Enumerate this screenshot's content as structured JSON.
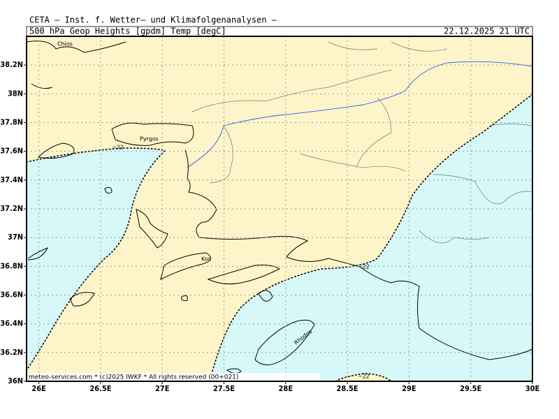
{
  "header": {
    "title": "CETA – Inst. f. Wetter– und Klimafolgenanalysen –",
    "product": "500_hPa_Geop_Heights_[gpdm]_Temp_[degC]",
    "time": "22.12.2025 21 UTC"
  },
  "map": {
    "lon_range": [
      25.9,
      30
    ],
    "lat_range": [
      36,
      38.4
    ],
    "lon_ticks": [
      {
        "value": 26,
        "label": "26E"
      },
      {
        "value": 26.5,
        "label": "26.5E"
      },
      {
        "value": 27,
        "label": "27E"
      },
      {
        "value": 27.5,
        "label": "27.5E"
      },
      {
        "value": 28,
        "label": "28E"
      },
      {
        "value": 28.5,
        "label": "28.5E"
      },
      {
        "value": 29,
        "label": "29E"
      },
      {
        "value": 29.5,
        "label": "29.5E"
      },
      {
        "value": 30,
        "label": "30E"
      }
    ],
    "lat_ticks": [
      {
        "value": 36,
        "label": "36N"
      },
      {
        "value": 36.2,
        "label": "36.2N"
      },
      {
        "value": 36.4,
        "label": "36.4N"
      },
      {
        "value": 36.6,
        "label": "36.6N"
      },
      {
        "value": 36.8,
        "label": "36.8N"
      },
      {
        "value": 37,
        "label": "37N"
      },
      {
        "value": 37.2,
        "label": "37.2N"
      },
      {
        "value": 37.4,
        "label": "37.4N"
      },
      {
        "value": 37.6,
        "label": "37.6N"
      },
      {
        "value": 37.8,
        "label": "37.8N"
      },
      {
        "value": 38,
        "label": "38N"
      },
      {
        "value": 38.2,
        "label": "38.2N"
      }
    ],
    "places": [
      "Chios",
      "Pyrgos",
      "Kos",
      "Rhodos"
    ],
    "contour_labels": [
      "−22",
      "−22",
      "−22"
    ]
  },
  "footer": "meteo-services.com * (c)2025 IWKF * All rights reserved (00+021)"
}
